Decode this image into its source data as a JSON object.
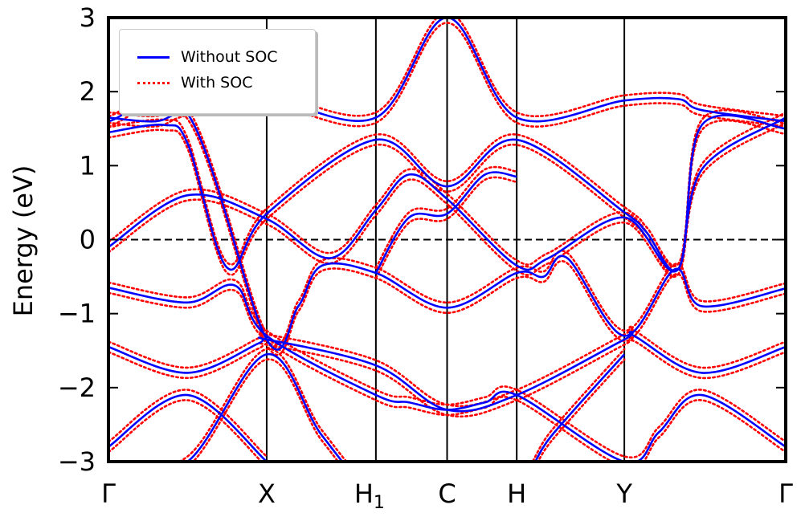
{
  "chart_data": {
    "type": "line",
    "title": "",
    "xlabel": "",
    "ylabel": "Energy (eV)",
    "ylim": [
      -3,
      3
    ],
    "yticks": [
      "3",
      "2",
      "1",
      "0",
      "−1",
      "−2",
      "−3"
    ],
    "ytick_values": [
      3,
      2,
      1,
      0,
      -1,
      -2,
      -3
    ],
    "kpath": [
      "Γ",
      "X",
      "H",
      "C",
      "H",
      "Y",
      "Γ"
    ],
    "kpath_subscripts": [
      "",
      "",
      "1",
      "",
      "",
      "",
      ""
    ],
    "kpath_positions": [
      0,
      1.0,
      1.69,
      2.14,
      2.58,
      3.26,
      4.28
    ],
    "fermi_level": 0,
    "series": [
      {
        "name": "Without SOC",
        "color": "#0000ff",
        "style": "solid"
      },
      {
        "name": "With SOC",
        "color": "#ff0000",
        "style": "dotted"
      }
    ],
    "bands": [
      {
        "x": [
          0,
          0.5,
          1.0
        ],
        "y": [
          -2.8,
          -2.1,
          -3.0
        ]
      },
      {
        "x": [
          0,
          0.5,
          1.0,
          1.35,
          1.69,
          2.14,
          2.58,
          2.8,
          3.26
        ],
        "y": [
          -3.2,
          -3.0,
          -1.55,
          -2.65,
          -3.4,
          -3.4,
          -3.3,
          -2.65,
          -1.55
        ]
      },
      {
        "x": [
          0,
          0.5,
          0.95,
          1.0,
          1.69,
          2.14,
          2.58,
          3.26,
          3.32,
          3.75,
          4.28
        ],
        "y": [
          -1.45,
          -1.8,
          -1.4,
          -1.35,
          -1.7,
          -2.3,
          -2.1,
          -1.35,
          -1.3,
          -1.8,
          -1.45
        ]
      },
      {
        "x": [
          0,
          0.5,
          0.8,
          1.0,
          1.69,
          1.9,
          2.14,
          2.38,
          2.58,
          3.26,
          3.48,
          3.75,
          4.28
        ],
        "y": [
          -0.65,
          -0.85,
          -0.62,
          -1.3,
          -2.1,
          -2.2,
          -2.3,
          -2.2,
          -2.1,
          -3.0,
          -2.6,
          -2.1,
          -2.8
        ]
      },
      {
        "x": [
          0,
          0.5,
          1.0,
          1.2,
          1.35,
          1.69,
          2.14,
          2.58,
          2.75,
          2.9,
          3.26,
          3.58,
          3.75,
          4.28
        ],
        "y": [
          1.6,
          1.7,
          -1.35,
          -0.9,
          -0.35,
          -0.45,
          -0.92,
          -0.45,
          -0.5,
          -0.25,
          -1.3,
          -0.4,
          -0.9,
          -0.66
        ]
      },
      {
        "x": [
          0,
          0.35,
          0.5,
          0.75,
          1.0,
          1.69,
          2.14,
          2.58,
          3.26,
          3.4,
          3.6,
          3.75,
          4.28
        ],
        "y": [
          1.45,
          1.55,
          1.3,
          -0.38,
          0.35,
          1.35,
          0.72,
          1.35,
          0.37,
          0.1,
          -0.4,
          0.95,
          1.65
        ]
      },
      {
        "x": [
          0,
          0.5,
          1.0,
          1.4,
          1.69,
          1.9,
          2.14,
          2.58,
          2.78,
          3.26,
          3.6,
          3.75,
          4.28
        ],
        "y": [
          -0.1,
          0.6,
          0.28,
          -0.25,
          0.4,
          0.88,
          0.55,
          -0.35,
          -0.25,
          0.3,
          -0.4,
          1.55,
          1.5
        ]
      },
      {
        "x": [
          0,
          0.3,
          0.5,
          1.0,
          1.69,
          2.14,
          2.58,
          3.26,
          3.6,
          3.75,
          4.28
        ],
        "y": [
          1.65,
          1.6,
          1.75,
          1.9,
          1.65,
          3.0,
          1.65,
          1.88,
          1.9,
          1.75,
          1.6
        ]
      },
      {
        "x": [
          1.69,
          1.9,
          2.14,
          2.38,
          2.58
        ],
        "y": [
          -0.45,
          0.3,
          0.35,
          0.88,
          0.85
        ]
      }
    ],
    "legend": {
      "entries": [
        "Without SOC",
        "With SOC"
      ],
      "location": "upper-left"
    }
  }
}
